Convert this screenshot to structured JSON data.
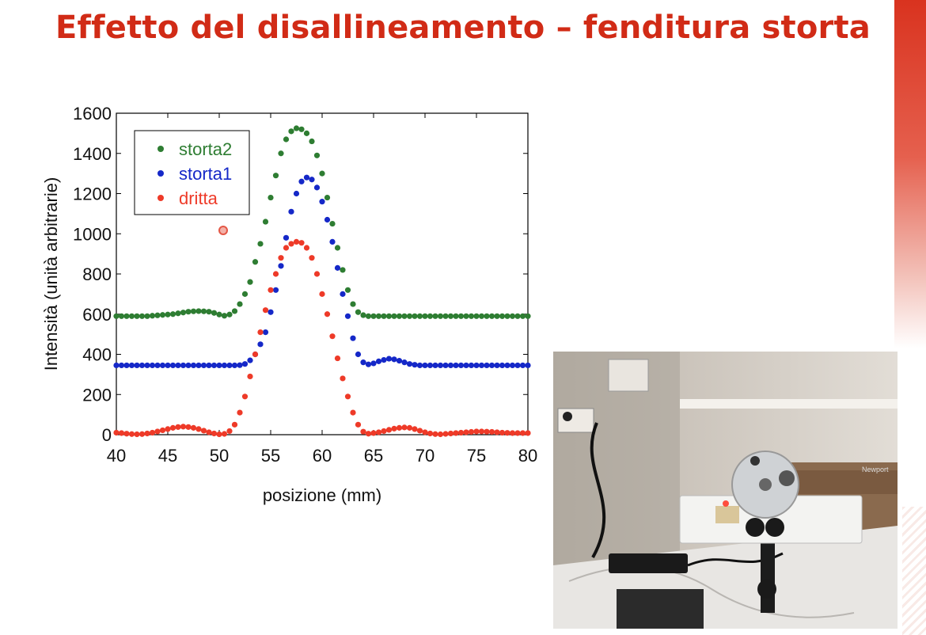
{
  "slide": {
    "title": "Effetto del disallineamento – fenditura storta",
    "accent_color": "#d12b16"
  },
  "photo": {
    "description_icon": "laser-slit-apparatus-photo",
    "brand_label": "Newport"
  },
  "chart_data": {
    "type": "scatter",
    "xlabel": "posizione (mm)",
    "ylabel": "Intensità (unità arbitrarie)",
    "xlim": [
      40,
      80
    ],
    "ylim": [
      0,
      1600
    ],
    "xticks": [
      40,
      45,
      50,
      55,
      60,
      65,
      70,
      75,
      80
    ],
    "yticks": [
      0,
      200,
      400,
      600,
      800,
      1000,
      1200,
      1400,
      1600
    ],
    "grid": false,
    "legend_position": "top-left",
    "x": [
      40,
      40.5,
      41,
      41.5,
      42,
      42.5,
      43,
      43.5,
      44,
      44.5,
      45,
      45.5,
      46,
      46.5,
      47,
      47.5,
      48,
      48.5,
      49,
      49.5,
      50,
      50.5,
      51,
      51.5,
      52,
      52.5,
      53,
      53.5,
      54,
      54.5,
      55,
      55.5,
      56,
      56.5,
      57,
      57.5,
      58,
      58.5,
      59,
      59.5,
      60,
      60.5,
      61,
      61.5,
      62,
      62.5,
      63,
      63.5,
      64,
      64.5,
      65,
      65.5,
      66,
      66.5,
      67,
      67.5,
      68,
      68.5,
      69,
      69.5,
      70,
      70.5,
      71,
      71.5,
      72,
      72.5,
      73,
      73.5,
      74,
      74.5,
      75,
      75.5,
      76,
      76.5,
      77,
      77.5,
      78,
      78.5,
      79,
      79.5,
      80
    ],
    "series": [
      {
        "name": "storta2",
        "color": "#2e7d32",
        "values": [
          590,
          590,
          590,
          590,
          590,
          590,
          590,
          592,
          594,
          596,
          598,
          600,
          604,
          608,
          612,
          614,
          615,
          614,
          612,
          606,
          598,
          592,
          598,
          615,
          650,
          700,
          760,
          860,
          950,
          1060,
          1180,
          1290,
          1400,
          1470,
          1510,
          1525,
          1520,
          1500,
          1460,
          1390,
          1300,
          1180,
          1050,
          930,
          820,
          720,
          650,
          610,
          595,
          590,
          590,
          590,
          590,
          590,
          590,
          590,
          590,
          590,
          590,
          590,
          590,
          590,
          590,
          590,
          590,
          590,
          590,
          590,
          590,
          590,
          590,
          590,
          590,
          590,
          590,
          590,
          590,
          590,
          590,
          590,
          590
        ]
      },
      {
        "name": "storta1",
        "color": "#1528c8",
        "values": [
          345,
          345,
          345,
          345,
          345,
          345,
          345,
          345,
          345,
          345,
          345,
          345,
          345,
          345,
          345,
          345,
          345,
          345,
          345,
          345,
          345,
          345,
          345,
          345,
          346,
          352,
          370,
          400,
          450,
          510,
          610,
          720,
          840,
          980,
          1110,
          1200,
          1260,
          1280,
          1270,
          1230,
          1160,
          1070,
          960,
          830,
          700,
          590,
          480,
          400,
          360,
          350,
          355,
          365,
          372,
          378,
          375,
          368,
          360,
          352,
          348,
          345,
          345,
          345,
          345,
          345,
          345,
          345,
          345,
          345,
          345,
          345,
          345,
          345,
          345,
          345,
          345,
          345,
          345,
          345,
          345,
          345,
          345
        ]
      },
      {
        "name": "dritta",
        "color": "#ee3a28",
        "values": [
          10,
          8,
          5,
          3,
          2,
          3,
          6,
          10,
          16,
          22,
          28,
          34,
          38,
          40,
          38,
          34,
          28,
          20,
          12,
          6,
          2,
          4,
          18,
          50,
          110,
          190,
          290,
          400,
          510,
          620,
          720,
          800,
          880,
          930,
          950,
          960,
          955,
          930,
          880,
          800,
          700,
          600,
          490,
          380,
          280,
          190,
          110,
          50,
          15,
          5,
          8,
          12,
          18,
          24,
          30,
          34,
          36,
          34,
          28,
          20,
          12,
          6,
          3,
          2,
          4,
          6,
          8,
          10,
          12,
          14,
          16,
          16,
          15,
          14,
          12,
          10,
          9,
          8,
          8,
          8,
          8
        ]
      }
    ]
  }
}
